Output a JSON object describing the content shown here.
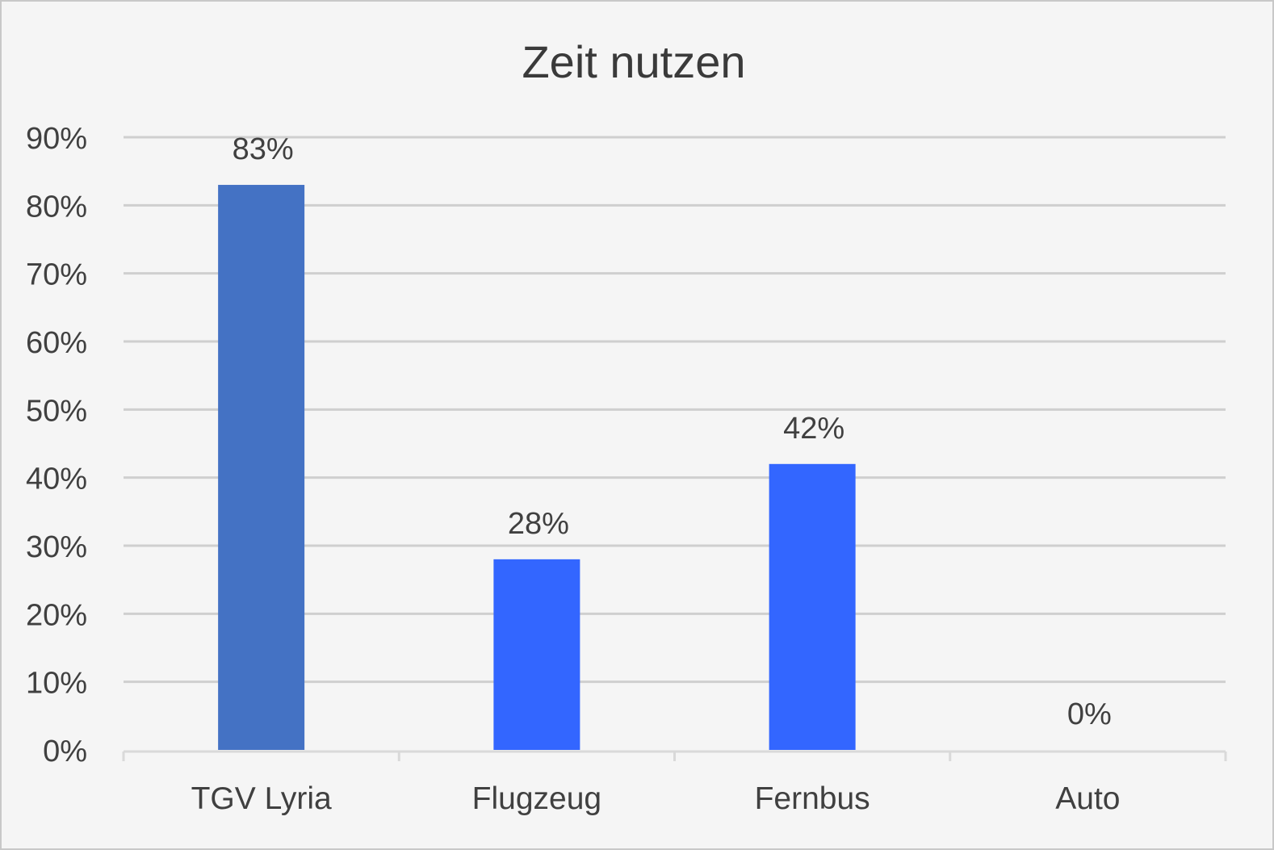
{
  "chart_data": {
    "type": "bar",
    "title": "Zeit nutzen",
    "categories": [
      "TGV Lyria",
      "Flugzeug",
      "Fernbus",
      "Auto"
    ],
    "values": [
      83,
      28,
      42,
      0
    ],
    "data_labels": [
      "83%",
      "28%",
      "42%",
      "0%"
    ],
    "bar_colors": [
      "#4472c4",
      "#3366ff",
      "#3366ff",
      "#3366ff"
    ],
    "ylim": [
      0,
      90
    ],
    "y_ticks": [
      0,
      10,
      20,
      30,
      40,
      50,
      60,
      70,
      80,
      90
    ],
    "y_tick_labels": [
      "0%",
      "10%",
      "20%",
      "30%",
      "40%",
      "50%",
      "60%",
      "70%",
      "80%",
      "90%"
    ],
    "xlabel": "",
    "ylabel": "",
    "grid": true,
    "legend": "none",
    "background_color": "#f5f5f5"
  }
}
